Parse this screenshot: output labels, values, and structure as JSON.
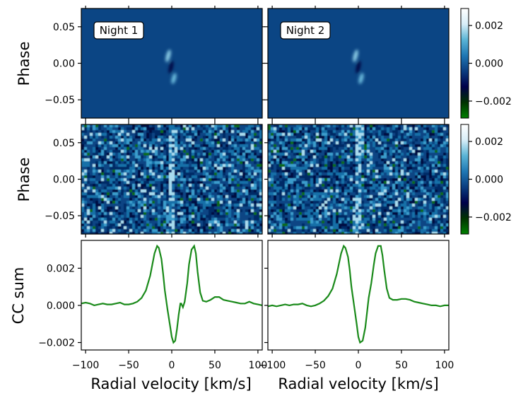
{
  "chart_data": {
    "type": "heatmap",
    "layout": "3x2 panel grid: model cross-correlation maps, observed cross-correlation maps, summed CC curves",
    "night_labels": [
      "Night 1",
      "Night 2"
    ],
    "row_ylabels": [
      "Phase",
      "Phase",
      "CC sum"
    ],
    "xlabel": "Radial velocity [km/s]",
    "x_ticks": [
      -100,
      -50,
      0,
      50,
      100
    ],
    "x_tick_labels": [
      "−100",
      "−50",
      "0",
      "50",
      "100"
    ],
    "xlim": [
      -105,
      105
    ],
    "phase_ticks": [
      0.05,
      0.0,
      -0.05
    ],
    "phase_tick_labels": [
      "0.05",
      "0.00",
      "−0.05"
    ],
    "phase_lim": [
      -0.075,
      0.075
    ],
    "colorbar": {
      "ticks": [
        0.002,
        0.0,
        -0.002
      ],
      "tick_labels": [
        "0.002",
        "0.000",
        "−0.002"
      ],
      "range": [
        -0.0029,
        0.0029
      ],
      "stops": [
        "#008000",
        "#003200",
        "#00004a",
        "#0a3d80",
        "#1f78b4",
        "#5ab4d6",
        "#d8eef8",
        "#ffffff"
      ]
    },
    "cc_ticks": [
      0.002,
      0.0,
      -0.002
    ],
    "cc_tick_labels": [
      "0.002",
      "0.000",
      "−0.002"
    ],
    "cc_lim": [
      -0.0024,
      0.0035
    ],
    "line_color": "#1a8a1a",
    "series": [
      {
        "panel": "Night 1",
        "x": [
          -105,
          -100,
          -95,
          -90,
          -85,
          -80,
          -75,
          -70,
          -65,
          -60,
          -55,
          -50,
          -45,
          -40,
          -35,
          -30,
          -25,
          -20,
          -17,
          -15,
          -12,
          -10,
          -8,
          -5,
          -2,
          0,
          2,
          4,
          6,
          8,
          10,
          11,
          13,
          15,
          18,
          20,
          23,
          26,
          28,
          30,
          33,
          36,
          40,
          45,
          50,
          55,
          60,
          65,
          70,
          75,
          80,
          85,
          90,
          95,
          100,
          105
        ],
        "y": [
          0.0001,
          0.00015,
          0.0001,
          0.0,
          5e-05,
          0.0001,
          5e-05,
          5e-05,
          0.0001,
          0.00015,
          5e-05,
          5e-05,
          0.0001,
          0.0002,
          0.0004,
          0.0008,
          0.0016,
          0.0028,
          0.0032,
          0.0031,
          0.0025,
          0.0017,
          0.0008,
          -0.0002,
          -0.0011,
          -0.0017,
          -0.002,
          -0.0019,
          -0.0013,
          -0.0005,
          0.0001,
          0.0001,
          -0.0001,
          0.0002,
          0.0012,
          0.0022,
          0.003,
          0.0032,
          0.0028,
          0.0018,
          0.0007,
          0.00025,
          0.0002,
          0.0003,
          0.00045,
          0.00045,
          0.0003,
          0.00025,
          0.0002,
          0.00015,
          0.0001,
          0.0001,
          0.0002,
          0.0001,
          5e-05,
          0.0
        ]
      },
      {
        "panel": "Night 2",
        "x": [
          -105,
          -100,
          -95,
          -90,
          -85,
          -80,
          -75,
          -70,
          -65,
          -60,
          -55,
          -50,
          -45,
          -40,
          -35,
          -30,
          -25,
          -20,
          -17,
          -15,
          -12,
          -10,
          -8,
          -5,
          -2,
          0,
          2,
          5,
          8,
          10,
          12,
          15,
          18,
          20,
          23,
          26,
          28,
          30,
          33,
          36,
          40,
          45,
          50,
          55,
          60,
          65,
          70,
          75,
          80,
          85,
          90,
          95,
          100,
          105
        ],
        "y": [
          -5e-05,
          0.0,
          -5e-05,
          0.0,
          5e-05,
          0.0,
          5e-05,
          5e-05,
          0.0001,
          0.0,
          -5e-05,
          0.0,
          0.0001,
          0.00025,
          0.0005,
          0.0009,
          0.0017,
          0.0028,
          0.0032,
          0.0031,
          0.0026,
          0.0019,
          0.001,
          0.0,
          -0.001,
          -0.0017,
          -0.002,
          -0.0019,
          -0.0012,
          -0.0004,
          0.0004,
          0.0012,
          0.0022,
          0.0028,
          0.0032,
          0.0032,
          0.0027,
          0.0019,
          0.0009,
          0.0004,
          0.0003,
          0.0003,
          0.00035,
          0.00035,
          0.0003,
          0.0002,
          0.00015,
          0.0001,
          5e-05,
          0.0,
          0.0,
          -5e-05,
          0.0,
          0.0
        ]
      }
    ]
  }
}
